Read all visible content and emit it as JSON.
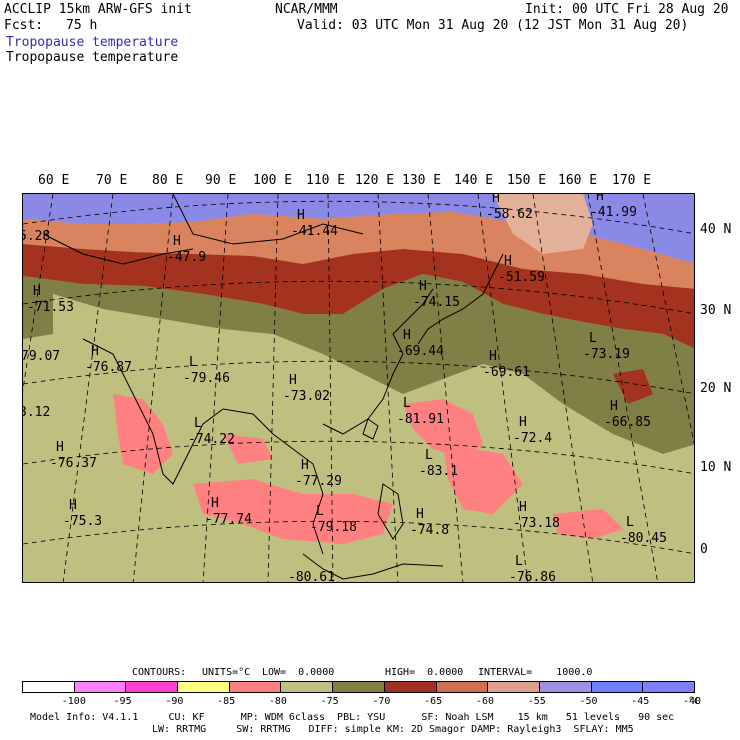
{
  "header": {
    "model": "ACCLIP 15km ARW-GFS init",
    "org": "NCAR/MMM",
    "init": "Init: 00 UTC Fri 28 Aug 20",
    "fcst_label": "Fcst:",
    "fcst_value": "75 h",
    "valid": "Valid: 03 UTC Mon 31 Aug 20 (12 JST Mon 31 Aug 20)",
    "field1": "Tropopause temperature",
    "field2": "Tropopause temperature"
  },
  "map": {
    "lon_labels": [
      "60 E",
      "70 E",
      "80 E",
      "90 E",
      "100 E",
      "110 E",
      "120 E",
      "130 E",
      "140 E",
      "150 E",
      "160 E",
      "170 E"
    ],
    "lat_labels": [
      "40 N",
      "30 N",
      "20 N",
      "10 N",
      "0"
    ],
    "pressure_labels": [
      {
        "type": "H",
        "value": "-41.44"
      },
      {
        "type": "H",
        "value": "-58.62"
      },
      {
        "type": "H",
        "value": "-41.99"
      },
      {
        "type": "H",
        "value": "-47.9"
      },
      {
        "type": "H",
        "value": "-51.59"
      },
      {
        "type": "",
        "value": "5.28"
      },
      {
        "type": "H",
        "value": "-71.53"
      },
      {
        "type": "H",
        "value": "-74.15"
      },
      {
        "type": "H",
        "value": "-69.44"
      },
      {
        "type": "L",
        "value": "-73.19"
      },
      {
        "type": "",
        "value": "79.07"
      },
      {
        "type": "H",
        "value": "-76.87"
      },
      {
        "type": "L",
        "value": "-79.46"
      },
      {
        "type": "H",
        "value": "-73.02"
      },
      {
        "type": "H",
        "value": "-69.61"
      },
      {
        "type": "H",
        "value": "-66.85"
      },
      {
        "type": "",
        "value": "3.12"
      },
      {
        "type": "L",
        "value": "-81.91"
      },
      {
        "type": "L",
        "value": "-74.22"
      },
      {
        "type": "H",
        "value": "-72.4"
      },
      {
        "type": "H",
        "value": "-76.37"
      },
      {
        "type": "L",
        "value": "-83.1"
      },
      {
        "type": "H",
        "value": "-77.29"
      },
      {
        "type": "H",
        "value": "-75.3"
      },
      {
        "type": "H",
        "value": "-77.74"
      },
      {
        "type": "L",
        "value": "-79.18"
      },
      {
        "type": "H",
        "value": "-74.8"
      },
      {
        "type": "H",
        "value": "-73.18"
      },
      {
        "type": "L",
        "value": "-80.45"
      },
      {
        "type": "",
        "value": "-80.61"
      },
      {
        "type": "L",
        "value": "-76.86"
      }
    ]
  },
  "contours": {
    "label": "CONTOURS:",
    "units": "UNITS=°C",
    "low": "LOW=  0.0000",
    "high": "HIGH=  0.0000",
    "interval": "INTERVAL=    1000.0"
  },
  "colorbar": {
    "colors": [
      "#ffffff",
      "#ff80ff",
      "#ff40d0",
      "#ffff80",
      "#ff8080",
      "#c0c080",
      "#808040",
      "#a03020",
      "#d07050",
      "#e0a090",
      "#a090e0",
      "#7080ff",
      "#8080ff"
    ],
    "ticks": [
      "-100",
      "-95",
      "-90",
      "-85",
      "-80",
      "-75",
      "-70",
      "-65",
      "-60",
      "-55",
      "-50",
      "-45",
      "-40"
    ],
    "unit": "°C"
  },
  "footer": {
    "line1": "Model Info: V4.1.1     CU: KF      MP: WDM 6class  PBL: YSU      SF: Noah LSM    15 km   51 levels   90 sec",
    "line2": "LW: RRTMG     SW: RRTMG   DIFF: simple KM: 2D Smagor DAMP: Rayleigh3  SFLAY: MM5"
  },
  "colors": {
    "violet": "#8a8ae6",
    "salmon": "#d9835f",
    "darkred": "#a3321e",
    "olive": "#7f7f46",
    "khaki": "#bfbf80",
    "pink": "#ff8080"
  }
}
